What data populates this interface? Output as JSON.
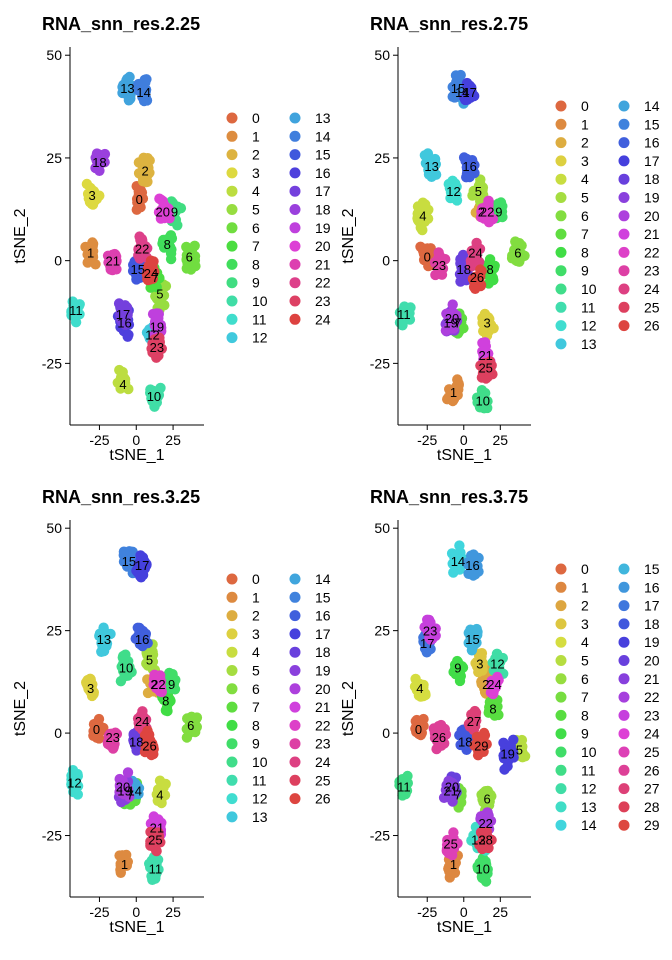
{
  "chart_data": [
    {
      "type": "scatter",
      "title": "RNA_snn_res.2.25",
      "xlabel": "tSNE_1",
      "ylabel": "tSNE_2",
      "xlim": [
        -45,
        46
      ],
      "ylim": [
        -40,
        52
      ],
      "xticks": [
        -25,
        0,
        25
      ],
      "xtick_labels": [
        "-25",
        "0",
        "25"
      ],
      "yticks": [
        -25,
        0,
        25,
        50
      ],
      "ytick_labels": [
        "-25",
        "0",
        "25",
        "50"
      ],
      "legend_position": "right",
      "legend_columns": 2,
      "legend_labels": [
        "0",
        "1",
        "2",
        "3",
        "4",
        "5",
        "6",
        "7",
        "8",
        "9",
        "10",
        "11",
        "12",
        "13",
        "14",
        "15",
        "16",
        "17",
        "18",
        "19",
        "20",
        "21",
        "22",
        "23",
        "24"
      ],
      "clusters": [
        {
          "label": "0",
          "x": 2,
          "y": 15
        },
        {
          "label": "1",
          "x": -31,
          "y": 2
        },
        {
          "label": "2",
          "x": 6,
          "y": 22
        },
        {
          "label": "3",
          "x": -30,
          "y": 16
        },
        {
          "label": "4",
          "x": -9,
          "y": -30
        },
        {
          "label": "5",
          "x": 16,
          "y": -8
        },
        {
          "label": "6",
          "x": 36,
          "y": 1
        },
        {
          "label": "7",
          "x": 13,
          "y": -4
        },
        {
          "label": "8",
          "x": 21,
          "y": 4
        },
        {
          "label": "9",
          "x": 26,
          "y": 12
        },
        {
          "label": "10",
          "x": 12,
          "y": -33
        },
        {
          "label": "11",
          "x": -41,
          "y": -12
        },
        {
          "label": "12",
          "x": 11,
          "y": -18
        },
        {
          "label": "13",
          "x": -6,
          "y": 42
        },
        {
          "label": "14",
          "x": 5,
          "y": 41
        },
        {
          "label": "15",
          "x": 1,
          "y": -2
        },
        {
          "label": "16",
          "x": -8,
          "y": -15
        },
        {
          "label": "17",
          "x": -9,
          "y": -13
        },
        {
          "label": "18",
          "x": -25,
          "y": 24
        },
        {
          "label": "19",
          "x": 14,
          "y": -16
        },
        {
          "label": "20",
          "x": 18,
          "y": 12
        },
        {
          "label": "21",
          "x": -16,
          "y": 0
        },
        {
          "label": "22",
          "x": 4,
          "y": 3
        },
        {
          "label": "23",
          "x": 14,
          "y": -21
        },
        {
          "label": "24",
          "x": 10,
          "y": -3
        }
      ]
    },
    {
      "type": "scatter",
      "title": "RNA_snn_res.2.75",
      "xlabel": "tSNE_1",
      "ylabel": "tSNE_2",
      "xlim": [
        -45,
        46
      ],
      "ylim": [
        -40,
        52
      ],
      "xticks": [
        -25,
        0,
        25
      ],
      "xtick_labels": [
        "-25",
        "0",
        "25"
      ],
      "yticks": [
        -25,
        0,
        25,
        50
      ],
      "ytick_labels": [
        "-25",
        "0",
        "25",
        "50"
      ],
      "legend_position": "right",
      "legend_columns": 2,
      "legend_labels": [
        "0",
        "1",
        "2",
        "3",
        "4",
        "5",
        "6",
        "7",
        "8",
        "9",
        "10",
        "11",
        "12",
        "13",
        "14",
        "15",
        "16",
        "17",
        "18",
        "19",
        "20",
        "21",
        "22",
        "23",
        "24",
        "25",
        "26"
      ],
      "clusters": [
        {
          "label": "0",
          "x": -25,
          "y": 1
        },
        {
          "label": "1",
          "x": -7,
          "y": -32
        },
        {
          "label": "2",
          "x": 12,
          "y": 12
        },
        {
          "label": "3",
          "x": 16,
          "y": -15
        },
        {
          "label": "4",
          "x": -28,
          "y": 11
        },
        {
          "label": "5",
          "x": 10,
          "y": 17
        },
        {
          "label": "6",
          "x": 37,
          "y": 2
        },
        {
          "label": "7",
          "x": -4,
          "y": -15
        },
        {
          "label": "8",
          "x": 18,
          "y": -2
        },
        {
          "label": "9",
          "x": 24,
          "y": 12
        },
        {
          "label": "10",
          "x": 13,
          "y": -34
        },
        {
          "label": "11",
          "x": -41,
          "y": -13
        },
        {
          "label": "12",
          "x": -7,
          "y": 17
        },
        {
          "label": "13",
          "x": -22,
          "y": 23
        },
        {
          "label": "14",
          "x": -1,
          "y": 41
        },
        {
          "label": "15",
          "x": -4,
          "y": 42
        },
        {
          "label": "16",
          "x": 4,
          "y": 23
        },
        {
          "label": "17",
          "x": 4,
          "y": 41
        },
        {
          "label": "18",
          "x": 0,
          "y": -2
        },
        {
          "label": "19",
          "x": -9,
          "y": -15
        },
        {
          "label": "20",
          "x": -8,
          "y": -14
        },
        {
          "label": "21",
          "x": 15,
          "y": -23
        },
        {
          "label": "22",
          "x": 16,
          "y": 12
        },
        {
          "label": "23",
          "x": -17,
          "y": -1
        },
        {
          "label": "24",
          "x": 8,
          "y": 2
        },
        {
          "label": "25",
          "x": 15,
          "y": -26
        },
        {
          "label": "26",
          "x": 9,
          "y": -4
        }
      ]
    },
    {
      "type": "scatter",
      "title": "RNA_snn_res.3.25",
      "xlabel": "tSNE_1",
      "ylabel": "tSNE_2",
      "xlim": [
        -45,
        46
      ],
      "ylim": [
        -40,
        52
      ],
      "xticks": [
        -25,
        0,
        25
      ],
      "xtick_labels": [
        "-25",
        "0",
        "25"
      ],
      "yticks": [
        -25,
        0,
        25,
        50
      ],
      "ytick_labels": [
        "-25",
        "0",
        "25",
        "50"
      ],
      "legend_position": "right",
      "legend_columns": 2,
      "legend_labels": [
        "0",
        "1",
        "2",
        "3",
        "4",
        "5",
        "6",
        "7",
        "8",
        "9",
        "10",
        "11",
        "12",
        "13",
        "14",
        "15",
        "16",
        "17",
        "18",
        "19",
        "20",
        "21",
        "22",
        "23",
        "24",
        "25",
        "26"
      ],
      "clusters": [
        {
          "label": "0",
          "x": -27,
          "y": 1
        },
        {
          "label": "1",
          "x": -8,
          "y": -32
        },
        {
          "label": "2",
          "x": 12,
          "y": 12
        },
        {
          "label": "3",
          "x": -31,
          "y": 11
        },
        {
          "label": "4",
          "x": 16,
          "y": -15
        },
        {
          "label": "5",
          "x": 9,
          "y": 18
        },
        {
          "label": "6",
          "x": 37,
          "y": 2
        },
        {
          "label": "7",
          "x": -4,
          "y": -15
        },
        {
          "label": "8",
          "x": 20,
          "y": 8
        },
        {
          "label": "9",
          "x": 24,
          "y": 12
        },
        {
          "label": "10",
          "x": -7,
          "y": 16
        },
        {
          "label": "11",
          "x": 13,
          "y": -33
        },
        {
          "label": "12",
          "x": -42,
          "y": -12
        },
        {
          "label": "13",
          "x": -22,
          "y": 23
        },
        {
          "label": "14",
          "x": -1,
          "y": -14
        },
        {
          "label": "15",
          "x": -5,
          "y": 42
        },
        {
          "label": "16",
          "x": 4,
          "y": 23
        },
        {
          "label": "17",
          "x": 4,
          "y": 41
        },
        {
          "label": "18",
          "x": 0,
          "y": -2
        },
        {
          "label": "19",
          "x": -8,
          "y": -14
        },
        {
          "label": "20",
          "x": -9,
          "y": -13
        },
        {
          "label": "21",
          "x": 14,
          "y": -23
        },
        {
          "label": "22",
          "x": 15,
          "y": 12
        },
        {
          "label": "23",
          "x": -16,
          "y": -1
        },
        {
          "label": "24",
          "x": 4,
          "y": 3
        },
        {
          "label": "25",
          "x": 13,
          "y": -26
        },
        {
          "label": "26",
          "x": 9,
          "y": -3
        }
      ]
    },
    {
      "type": "scatter",
      "title": "RNA_snn_res.3.75",
      "xlabel": "tSNE_1",
      "ylabel": "tSNE_2",
      "xlim": [
        -45,
        46
      ],
      "ylim": [
        -40,
        52
      ],
      "xticks": [
        -25,
        0,
        25
      ],
      "xtick_labels": [
        "-25",
        "0",
        "25"
      ],
      "yticks": [
        -25,
        0,
        25,
        50
      ],
      "ytick_labels": [
        "-25",
        "0",
        "25",
        "50"
      ],
      "legend_position": "right",
      "legend_columns": 2,
      "legend_labels": [
        "0",
        "1",
        "2",
        "3",
        "4",
        "5",
        "6",
        "7",
        "8",
        "9",
        "10",
        "11",
        "12",
        "13",
        "14",
        "15",
        "16",
        "17",
        "18",
        "19",
        "20",
        "21",
        "22",
        "23",
        "24",
        "25",
        "26",
        "27",
        "28",
        "29"
      ],
      "clusters": [
        {
          "label": "0",
          "x": -31,
          "y": 1
        },
        {
          "label": "1",
          "x": -7,
          "y": -32
        },
        {
          "label": "2",
          "x": 15,
          "y": 12
        },
        {
          "label": "3",
          "x": 11,
          "y": 17
        },
        {
          "label": "4",
          "x": -30,
          "y": 11
        },
        {
          "label": "5",
          "x": 38,
          "y": -4
        },
        {
          "label": "6",
          "x": 16,
          "y": -16
        },
        {
          "label": "7",
          "x": -4,
          "y": -15
        },
        {
          "label": "8",
          "x": 20,
          "y": 6
        },
        {
          "label": "9",
          "x": -4,
          "y": 16
        },
        {
          "label": "10",
          "x": 13,
          "y": -33
        },
        {
          "label": "11",
          "x": -41,
          "y": -13
        },
        {
          "label": "12",
          "x": 23,
          "y": 17
        },
        {
          "label": "13",
          "x": 10,
          "y": -26
        },
        {
          "label": "14",
          "x": -4,
          "y": 42
        },
        {
          "label": "15",
          "x": 6,
          "y": 23
        },
        {
          "label": "16",
          "x": 6,
          "y": 41
        },
        {
          "label": "17",
          "x": -25,
          "y": 22
        },
        {
          "label": "18",
          "x": 1,
          "y": -2
        },
        {
          "label": "19",
          "x": 30,
          "y": -5
        },
        {
          "label": "20",
          "x": -8,
          "y": -13
        },
        {
          "label": "21",
          "x": -9,
          "y": -14
        },
        {
          "label": "22",
          "x": 15,
          "y": -22
        },
        {
          "label": "23",
          "x": -23,
          "y": 25
        },
        {
          "label": "24",
          "x": 21,
          "y": 12
        },
        {
          "label": "25",
          "x": -9,
          "y": -27
        },
        {
          "label": "26",
          "x": -17,
          "y": -1
        },
        {
          "label": "27",
          "x": 7,
          "y": 3
        },
        {
          "label": "28",
          "x": 15,
          "y": -26
        },
        {
          "label": "29",
          "x": 12,
          "y": -3
        }
      ]
    }
  ]
}
